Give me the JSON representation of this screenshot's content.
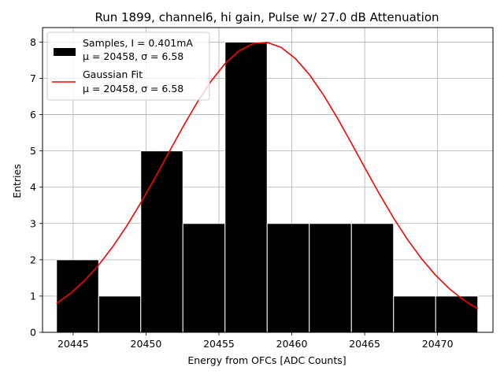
{
  "chart_data": {
    "type": "bar",
    "title": "Run 1899, channel6, hi gain, Pulse w/ 27.0 dB Attenuation",
    "xlabel": "Energy from OFCs [ADC Counts]",
    "ylabel": "Entries",
    "xlim": [
      20442.9,
      20473.8
    ],
    "ylim": [
      0,
      8.4
    ],
    "grid": true,
    "xticks": [
      20445,
      20450,
      20455,
      20460,
      20465,
      20470
    ],
    "yticks": [
      0,
      1,
      2,
      3,
      4,
      5,
      6,
      7,
      8
    ],
    "legend_position": "top-left",
    "series": [
      {
        "name": "Samples",
        "kind": "histogram",
        "color": "#000000",
        "edge_color": "#ffffff",
        "bin_edges": [
          20443.86,
          20446.75,
          20449.64,
          20452.53,
          20455.42,
          20458.31,
          20461.2,
          20464.09,
          20466.98,
          20469.87,
          20472.76
        ],
        "counts": [
          2,
          1,
          5,
          3,
          8,
          3,
          3,
          3,
          1,
          1
        ]
      },
      {
        "name": "Gaussian Fit",
        "kind": "line",
        "color": "#ff0000",
        "mu": 20458,
        "sigma": 6.58,
        "amplitude": 8,
        "x_range": [
          20443.86,
          20472.76
        ]
      }
    ],
    "legend": [
      {
        "label_line1": "Samples, I = 0.401mA",
        "label_line2": "μ = 20458, σ = 6.58"
      },
      {
        "label_line1": "Gaussian Fit",
        "label_line2": "μ = 20458, σ = 6.58"
      }
    ]
  }
}
